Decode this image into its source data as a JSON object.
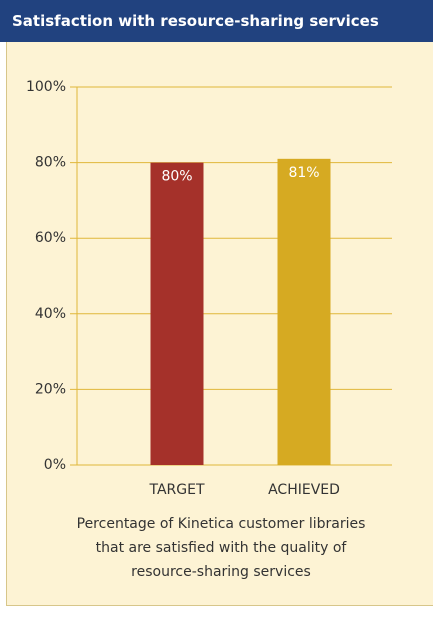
{
  "chart_data": {
    "type": "bar",
    "title": "Satisfaction with resource-sharing services",
    "categories": [
      "TARGET",
      "ACHIEVED"
    ],
    "values": [
      80,
      81
    ],
    "value_labels": [
      "80%",
      "81%"
    ],
    "colors": [
      "#a5312a",
      "#d6aa22"
    ],
    "ylim": [
      0,
      100
    ],
    "yticks": [
      {
        "value": 0,
        "label": "0%"
      },
      {
        "value": 20,
        "label": "20%"
      },
      {
        "value": 40,
        "label": "40%"
      },
      {
        "value": 60,
        "label": "60%"
      },
      {
        "value": 80,
        "label": "80%"
      },
      {
        "value": 100,
        "label": "100%"
      }
    ],
    "grid": true,
    "caption": "Percentage of Kinetica customer libraries that are satisfied with the quality of resource-sharing services"
  }
}
